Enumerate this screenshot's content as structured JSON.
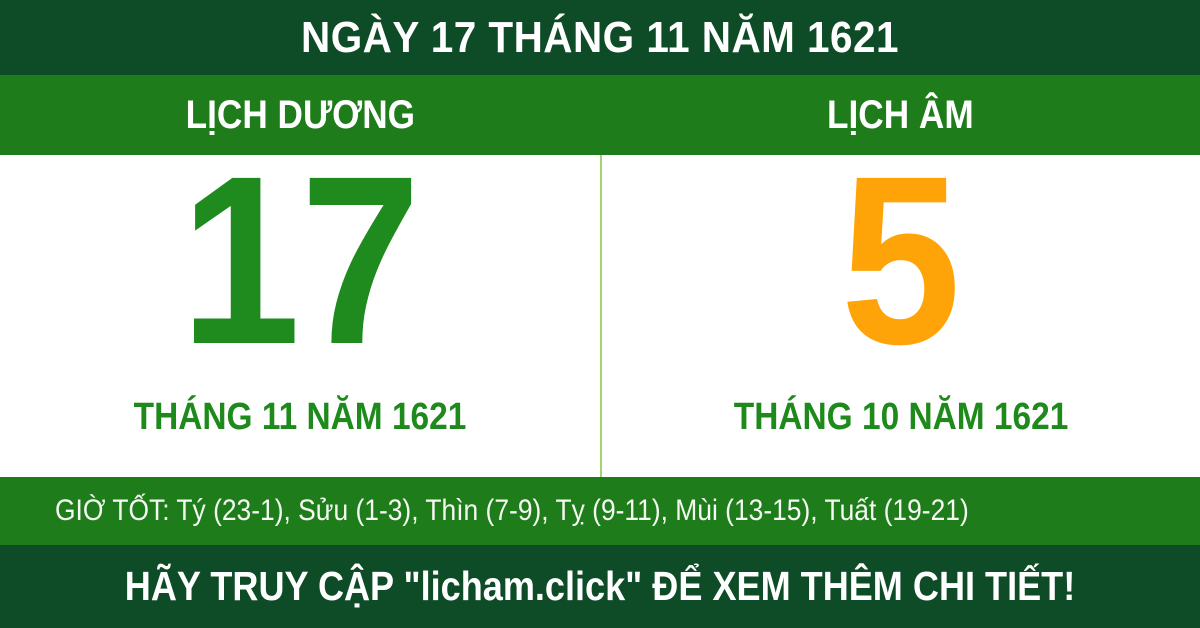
{
  "header": {
    "title": "NGÀY 17 THÁNG 11 NĂM 1621"
  },
  "calendar": {
    "solar": {
      "label": "LỊCH DƯƠNG",
      "day": "17",
      "month_year": "THÁNG 11 NĂM 1621"
    },
    "lunar": {
      "label": "LỊCH ÂM",
      "day": "5",
      "month_year": "THÁNG 10 NĂM 1621"
    }
  },
  "good_hours": {
    "text": "GIỜ TỐT: Tý (23-1), Sửu (1-3), Thìn (7-9), Tỵ (9-11), Mùi (13-15), Tuất (19-21)"
  },
  "footer": {
    "text": "HÃY TRUY CẬP \"licham.click\" ĐỂ XEM THÊM CHI TIẾT!"
  },
  "colors": {
    "dark_green": "#0d4c26",
    "bar_green": "#1e7d1a",
    "solar_day_green": "#1f8b1f",
    "lunar_day_orange": "#ffa408",
    "month_label_green": "#1e8a1c",
    "divider_light_green": "#a2d46f",
    "panel_white": "#ffffff",
    "text_white": "#ffffff"
  }
}
